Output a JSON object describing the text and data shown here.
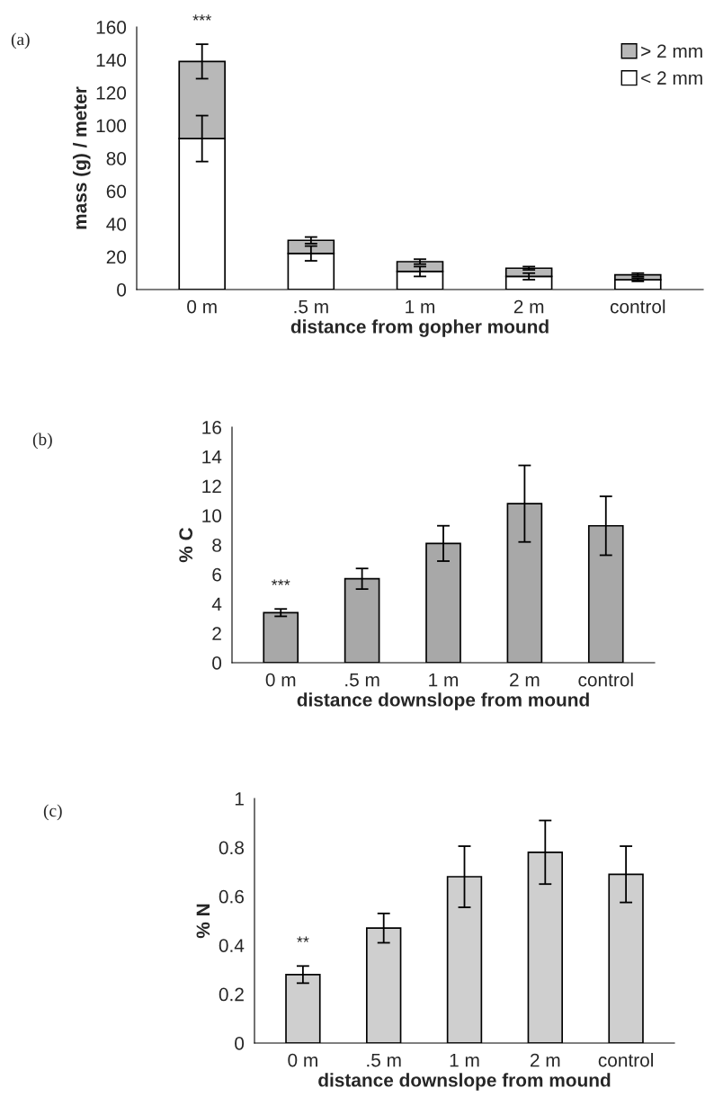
{
  "chart_data": [
    {
      "type": "bar",
      "stacked": true,
      "categories": [
        "0 m",
        ".5 m",
        "1 m",
        "2 m",
        "control"
      ],
      "xlabel": "distance from gopher mound",
      "ylabel": "mass (g) / meter",
      "ylim": [
        0,
        160
      ],
      "yticks": [
        0,
        20,
        40,
        60,
        80,
        100,
        120,
        140,
        160
      ],
      "legend": "top right",
      "series": [
        {
          "name": "< 2 mm",
          "color": "#ffffff",
          "values": [
            92,
            22,
            11,
            8,
            6
          ],
          "errors": [
            14,
            4.5,
            3,
            2,
            1
          ]
        },
        {
          "name": "> 2 mm",
          "color": "#b8b8b8",
          "values": [
            47,
            8,
            6,
            5,
            3
          ],
          "errors": [
            10.5,
            2,
            1.5,
            1,
            1
          ]
        }
      ],
      "annotations": [
        "(a)",
        "***"
      ]
    },
    {
      "type": "bar",
      "categories": [
        "0 m",
        ".5 m",
        "1 m",
        "2 m",
        "control"
      ],
      "xlabel": "distance downslope from mound",
      "ylabel": "% C",
      "ylim": [
        0,
        16
      ],
      "yticks": [
        0,
        2,
        4,
        6,
        8,
        10,
        12,
        14,
        16
      ],
      "series": [
        {
          "color": "#a8a8a8",
          "values": [
            3.4,
            5.7,
            8.1,
            10.8,
            9.3
          ],
          "errors": [
            0.25,
            0.7,
            1.2,
            2.6,
            2.0
          ]
        }
      ],
      "annotations": [
        "(b)",
        "***"
      ]
    },
    {
      "type": "bar",
      "categories": [
        "0 m",
        ".5 m",
        "1 m",
        "2 m",
        "control"
      ],
      "xlabel": "distance downslope from mound",
      "ylabel": "% N",
      "ylim": [
        0,
        1
      ],
      "yticks": [
        0,
        0.2,
        0.4,
        0.6,
        0.8,
        {
          "value": 1,
          "label": "1"
        }
      ],
      "series": [
        {
          "color": "#cfcfcf",
          "values": [
            0.28,
            0.47,
            0.68,
            0.78,
            0.69
          ],
          "errors": [
            0.035,
            0.06,
            0.125,
            0.13,
            0.115
          ]
        }
      ],
      "annotations": [
        "(c)",
        "**"
      ]
    }
  ]
}
